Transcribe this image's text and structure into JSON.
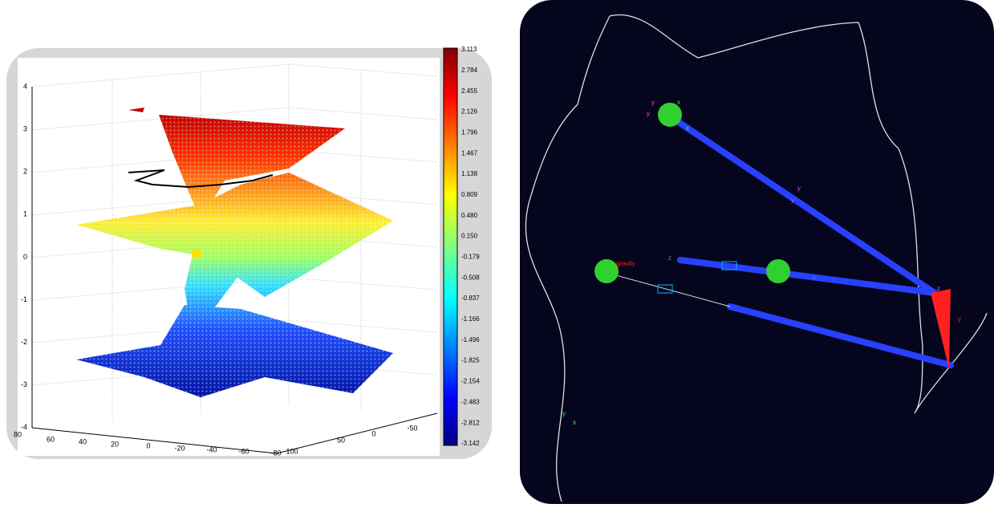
{
  "left_plot": {
    "z_ticks": [
      "4",
      "3",
      "2",
      "1",
      "0",
      "-1",
      "-2",
      "-3",
      "-4"
    ],
    "x_ticks": [
      "80",
      "60",
      "40",
      "20",
      "0",
      "-20",
      "-40",
      "-60",
      "-80"
    ],
    "y_ticks": [
      "100",
      "50",
      "0",
      "-50"
    ],
    "colorbar_ticks": [
      "3.113",
      "2.784",
      "2.455",
      "2.126",
      "1.796",
      "1.467",
      "1.138",
      "0.809",
      "0.480",
      "0.150",
      "-0.179",
      "-0.508",
      "-0.837",
      "-1.166",
      "-1.496",
      "-1.825",
      "-2.154",
      "-2.483",
      "-2.812",
      "-3.142"
    ]
  },
  "right_view": {
    "gravity_label": "gravity",
    "axis_labels": [
      "x",
      "y",
      "y",
      "x",
      "z",
      "x",
      "y",
      "y",
      "z",
      "y",
      "y",
      "x"
    ]
  }
}
